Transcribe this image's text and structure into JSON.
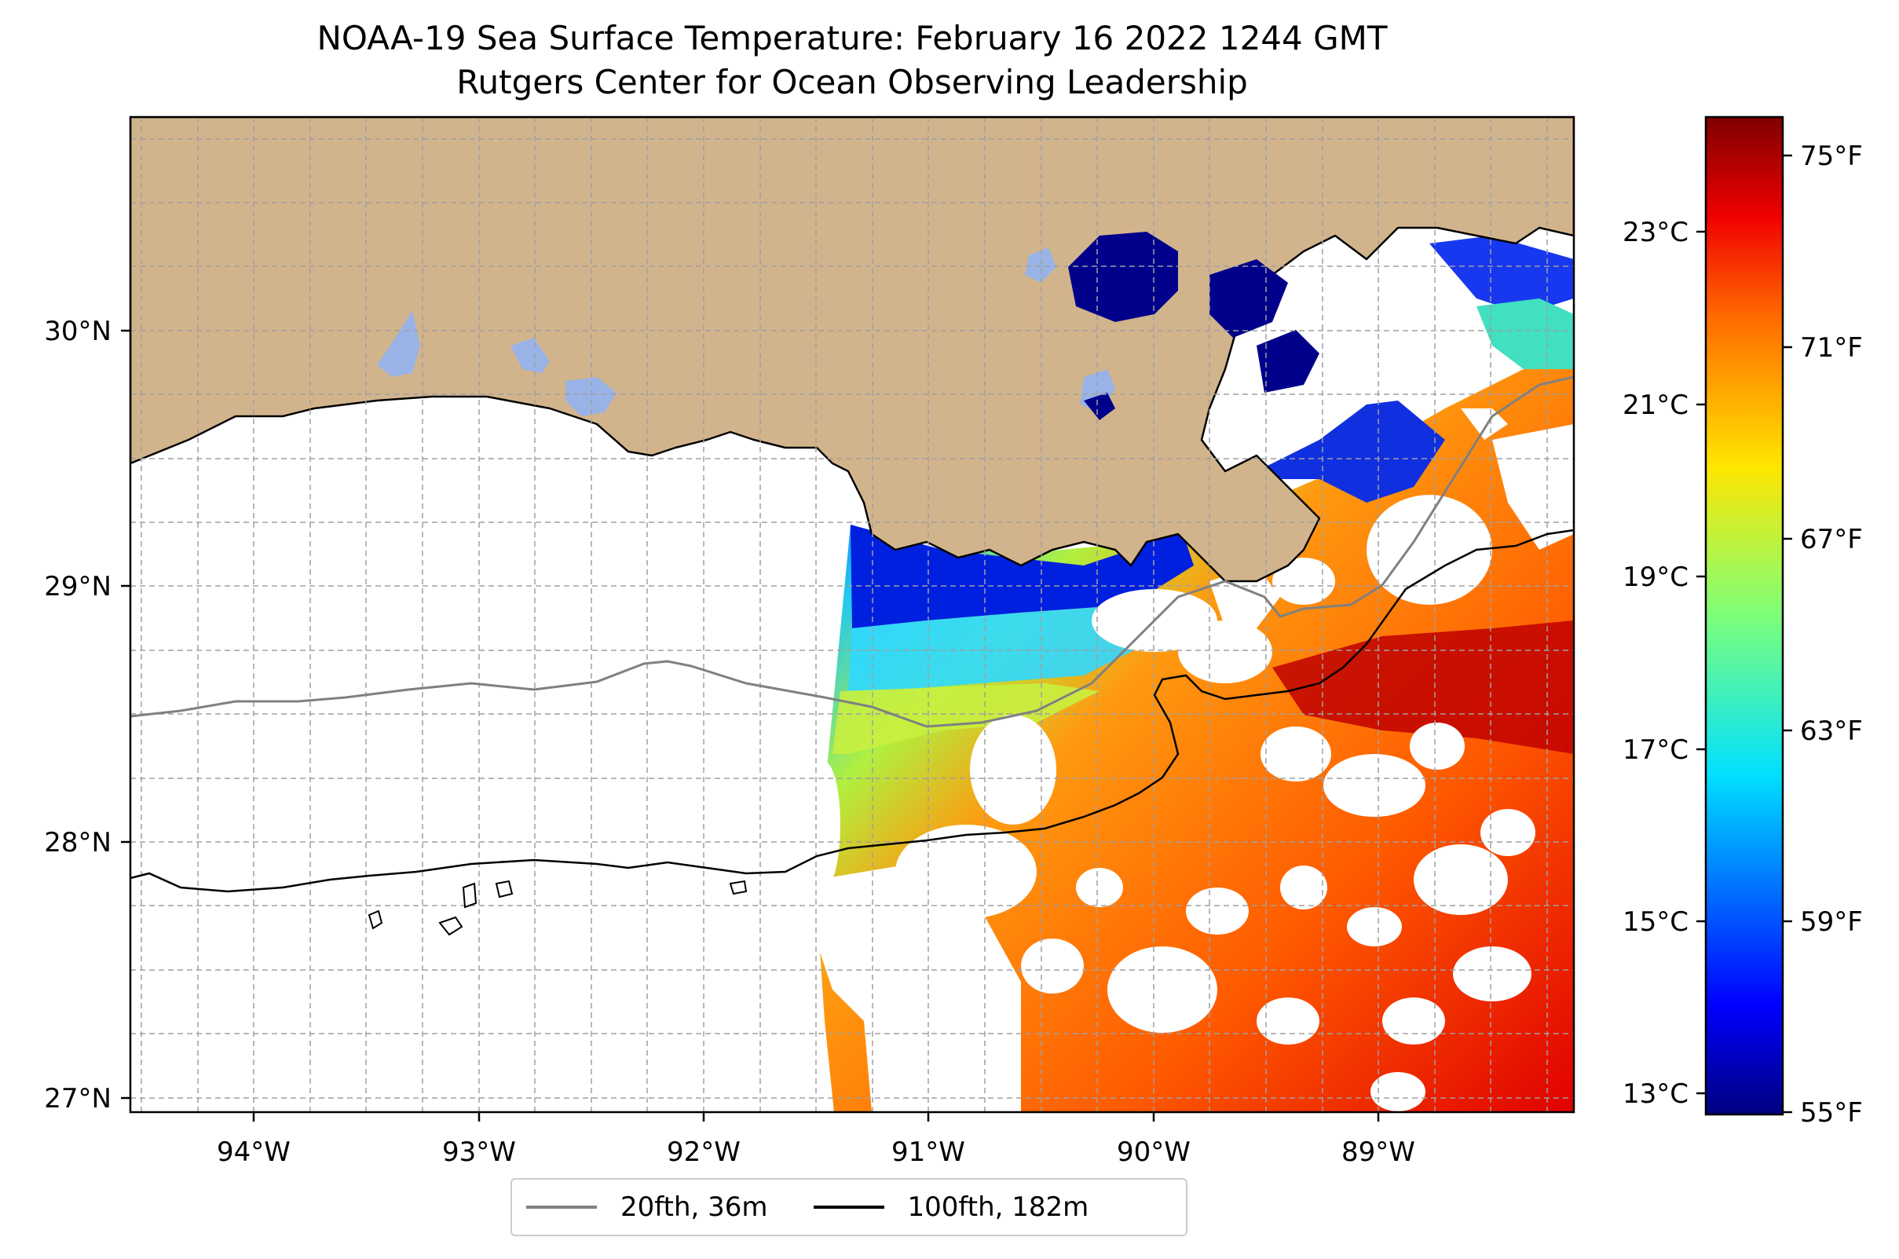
{
  "title": {
    "line1": "NOAA-19 Sea Surface Temperature: February 16 2022 1244 GMT",
    "line2": "Rutgers Center for Ocean Observing Leadership"
  },
  "map": {
    "lon_range": [
      -94.55,
      -88.2
    ],
    "lat_range": [
      26.93,
      30.83
    ],
    "x_ticks": [
      {
        "lon": -94,
        "label": "94°W"
      },
      {
        "lon": -93,
        "label": "93°W"
      },
      {
        "lon": -92,
        "label": "92°W"
      },
      {
        "lon": -91,
        "label": "91°W"
      },
      {
        "lon": -90,
        "label": "90°W"
      },
      {
        "lon": -89,
        "label": "89°W"
      }
    ],
    "y_ticks": [
      {
        "lat": 27,
        "label": "27°N"
      },
      {
        "lat": 28,
        "label": "28°N"
      },
      {
        "lat": 29,
        "label": "29°N"
      },
      {
        "lat": 30,
        "label": "30°N"
      }
    ],
    "gridlines": true,
    "colors": {
      "land": "#d2b48c",
      "water_body": "#99b3e6",
      "isobath_20": "#808080",
      "isobath_100": "#000000"
    }
  },
  "colorbar": {
    "colormap": "jet",
    "range_f": [
      55,
      76
    ],
    "celsius_ticks": [
      {
        "c": 13,
        "label": "13°C"
      },
      {
        "c": 15,
        "label": "15°C"
      },
      {
        "c": 17,
        "label": "17°C"
      },
      {
        "c": 19,
        "label": "19°C"
      },
      {
        "c": 21,
        "label": "21°C"
      },
      {
        "c": 23,
        "label": "23°C"
      }
    ],
    "fahrenheit_ticks": [
      {
        "f": 55,
        "label": "55°F"
      },
      {
        "f": 59,
        "label": "59°F"
      },
      {
        "f": 63,
        "label": "63°F"
      },
      {
        "f": 67,
        "label": "67°F"
      },
      {
        "f": 71,
        "label": "71°F"
      },
      {
        "f": 75,
        "label": "75°F"
      }
    ]
  },
  "legend": {
    "placement": "below-center",
    "items": [
      {
        "label": "20fth, 36m",
        "color": "#808080"
      },
      {
        "label": "100fth, 182m",
        "color": "#000000"
      }
    ]
  }
}
